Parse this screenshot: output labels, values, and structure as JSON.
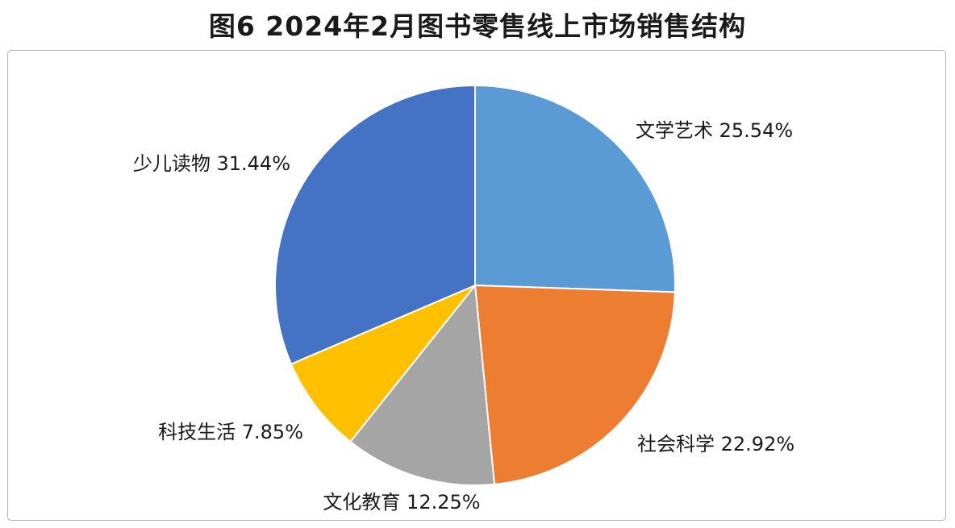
{
  "chart_data": {
    "type": "pie",
    "title": "图6 2024年2月图书零售线上市场销售结构",
    "slices": [
      {
        "label": "文学艺术",
        "value": 25.54,
        "value_label": "25.54%",
        "color": "#5B9BD5"
      },
      {
        "label": "社会科学",
        "value": 22.92,
        "value_label": "22.92%",
        "color": "#ED7D31"
      },
      {
        "label": "文化教育",
        "value": 12.25,
        "value_label": "12.25%",
        "color": "#A5A5A5"
      },
      {
        "label": "科技生活",
        "value": 7.85,
        "value_label": "7.85%",
        "color": "#FFC000"
      },
      {
        "label": "少儿读物",
        "value": 31.44,
        "value_label": "31.44%",
        "color": "#4472C4"
      }
    ],
    "start_angle": "12 o'clock",
    "direction": "clockwise",
    "legend": "none",
    "data_labels": "outside"
  }
}
